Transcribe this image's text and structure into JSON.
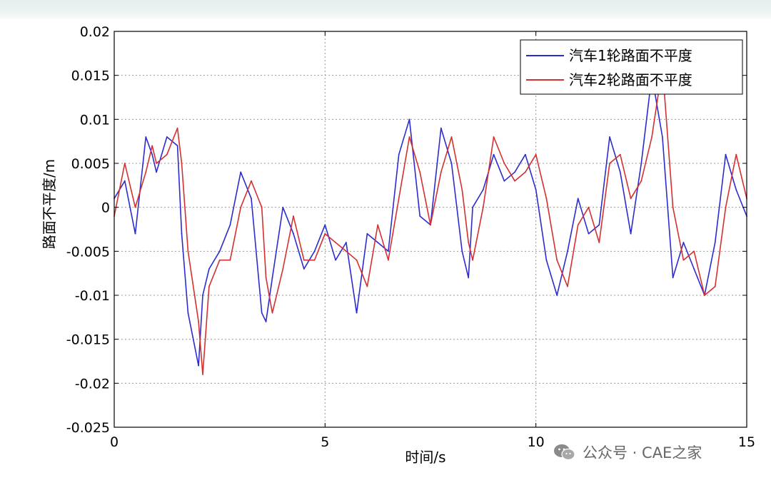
{
  "chart_data": {
    "type": "line",
    "title": "",
    "xlabel": "时间/s",
    "ylabel": "路面不平度/m",
    "xlim": [
      0,
      15
    ],
    "ylim": [
      -0.025,
      0.02
    ],
    "xticks": [
      0,
      5,
      10,
      15
    ],
    "yticks": [
      0.02,
      0.015,
      0.01,
      0.005,
      0,
      -0.005,
      -0.01,
      -0.015,
      -0.02,
      -0.025
    ],
    "ytick_labels": [
      "0.02",
      "0.015",
      "0.01",
      "0.005",
      "0",
      "-0.005",
      "-0.01",
      "-0.015",
      "-0.02",
      "-0.025"
    ],
    "xtick_labels": [
      "0",
      "5",
      "10",
      "15"
    ],
    "grid": true,
    "legend_position": "top-right",
    "series": [
      {
        "name": "汽车1轮路面不平度",
        "color": "#2b2bd0",
        "x": [
          0,
          0.25,
          0.5,
          0.75,
          0.9,
          1.0,
          1.25,
          1.5,
          1.6,
          1.75,
          2.0,
          2.1,
          2.25,
          2.5,
          2.75,
          3.0,
          3.25,
          3.5,
          3.6,
          3.75,
          4.0,
          4.25,
          4.5,
          4.75,
          5.0,
          5.25,
          5.5,
          5.75,
          6.0,
          6.25,
          6.5,
          6.75,
          7.0,
          7.25,
          7.5,
          7.75,
          8.0,
          8.25,
          8.4,
          8.5,
          8.75,
          9.0,
          9.25,
          9.5,
          9.75,
          10.0,
          10.25,
          10.5,
          10.75,
          11.0,
          11.25,
          11.5,
          11.75,
          12.0,
          12.25,
          12.5,
          12.75,
          13.0,
          13.25,
          13.5,
          13.75,
          14.0,
          14.25,
          14.5,
          14.75,
          15.0
        ],
        "y": [
          0.001,
          0.003,
          -0.003,
          0.008,
          0.006,
          0.004,
          0.008,
          0.007,
          -0.003,
          -0.012,
          -0.018,
          -0.01,
          -0.007,
          -0.005,
          -0.002,
          0.004,
          0.001,
          -0.012,
          -0.013,
          -0.008,
          0.0,
          -0.003,
          -0.007,
          -0.005,
          -0.002,
          -0.006,
          -0.004,
          -0.012,
          -0.003,
          -0.004,
          -0.005,
          0.006,
          0.01,
          -0.001,
          -0.002,
          0.009,
          0.005,
          -0.005,
          -0.008,
          0.0,
          0.002,
          0.006,
          0.003,
          0.004,
          0.006,
          0.002,
          -0.006,
          -0.01,
          -0.005,
          0.001,
          -0.003,
          -0.002,
          0.008,
          0.004,
          -0.003,
          0.005,
          0.015,
          0.008,
          -0.008,
          -0.004,
          -0.007,
          -0.01,
          -0.004,
          0.006,
          0.002,
          -0.001
        ]
      },
      {
        "name": "汽车2轮路面不平度",
        "color": "#d43030",
        "x": [
          0,
          0.25,
          0.5,
          0.75,
          0.9,
          1.0,
          1.25,
          1.5,
          1.6,
          1.75,
          2.0,
          2.1,
          2.25,
          2.5,
          2.75,
          3.0,
          3.25,
          3.5,
          3.6,
          3.75,
          4.0,
          4.25,
          4.5,
          4.75,
          5.0,
          5.25,
          5.5,
          5.75,
          6.0,
          6.25,
          6.5,
          6.75,
          7.0,
          7.25,
          7.5,
          7.75,
          8.0,
          8.25,
          8.4,
          8.5,
          8.75,
          9.0,
          9.25,
          9.5,
          9.75,
          10.0,
          10.25,
          10.5,
          10.75,
          11.0,
          11.25,
          11.5,
          11.75,
          12.0,
          12.25,
          12.5,
          12.75,
          13.0,
          13.25,
          13.5,
          13.75,
          14.0,
          14.25,
          14.5,
          14.75,
          15.0
        ],
        "y": [
          -0.001,
          0.005,
          0.0,
          0.004,
          0.007,
          0.005,
          0.006,
          0.009,
          0.005,
          -0.005,
          -0.013,
          -0.019,
          -0.009,
          -0.006,
          -0.006,
          0.0,
          0.003,
          0.0,
          -0.008,
          -0.012,
          -0.007,
          -0.001,
          -0.006,
          -0.006,
          -0.003,
          -0.004,
          -0.005,
          -0.006,
          -0.009,
          -0.002,
          -0.006,
          0.001,
          0.008,
          0.004,
          -0.002,
          0.004,
          0.008,
          0.002,
          -0.004,
          -0.006,
          0.0,
          0.008,
          0.005,
          0.003,
          0.004,
          0.006,
          0.001,
          -0.006,
          -0.009,
          -0.002,
          0.0,
          -0.004,
          0.005,
          0.006,
          0.001,
          0.003,
          0.008,
          0.016,
          0.0,
          -0.006,
          -0.005,
          -0.01,
          -0.009,
          0.0,
          0.006,
          0.001
        ]
      }
    ]
  },
  "watermark": {
    "text": "公众号 · CAE之家",
    "icon": "wechat-icon"
  }
}
